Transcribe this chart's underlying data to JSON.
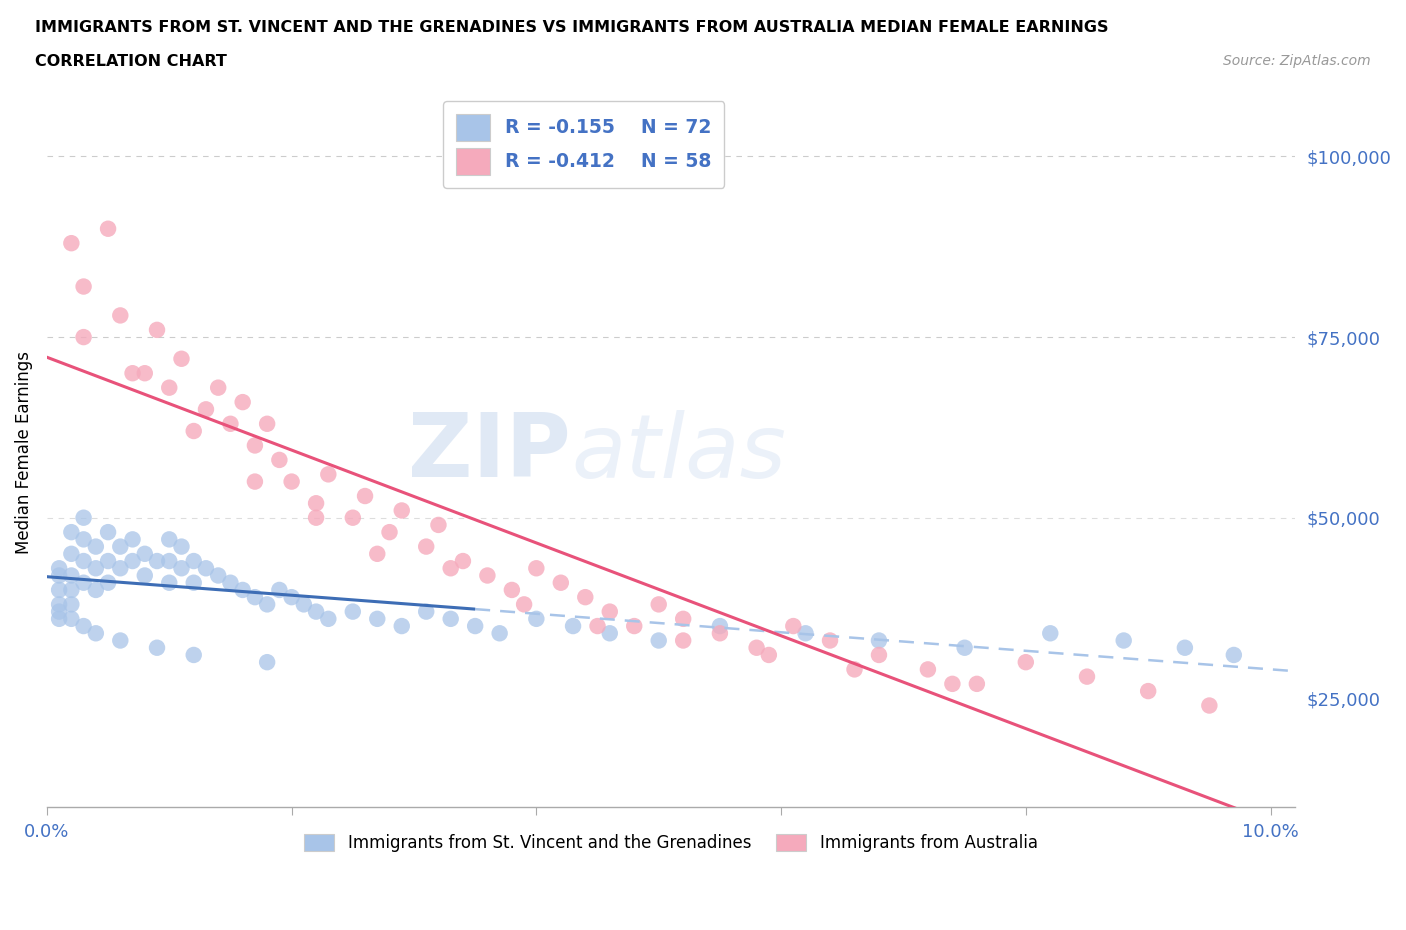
{
  "title_line1": "IMMIGRANTS FROM ST. VINCENT AND THE GRENADINES VS IMMIGRANTS FROM AUSTRALIA MEDIAN FEMALE EARNINGS",
  "title_line2": "CORRELATION CHART",
  "source": "Source: ZipAtlas.com",
  "ylabel": "Median Female Earnings",
  "xlim": [
    0.0,
    0.102
  ],
  "ylim": [
    10000,
    108000
  ],
  "yticks": [
    25000,
    50000,
    75000,
    100000
  ],
  "ytick_labels": [
    "$25,000",
    "$50,000",
    "$75,000",
    "$100,000"
  ],
  "xticks": [
    0.0,
    0.02,
    0.04,
    0.06,
    0.08,
    0.1
  ],
  "xtick_labels": [
    "0.0%",
    "",
    "",
    "",
    "",
    "10.0%"
  ],
  "legend_r1": "R = -0.155",
  "legend_n1": "N = 72",
  "legend_r2": "R = -0.412",
  "legend_n2": "N = 58",
  "color_blue": "#a8c4e8",
  "color_pink": "#f5aabc",
  "color_blue_line": "#3d6db5",
  "color_pink_line": "#e8527a",
  "color_blue_dash": "#a8c4e8",
  "watermark_zip": "ZIP",
  "watermark_atlas": "atlas",
  "label1": "Immigrants from St. Vincent and the Grenadines",
  "label2": "Immigrants from Australia",
  "blue_x": [
    0.001,
    0.001,
    0.001,
    0.001,
    0.001,
    0.002,
    0.002,
    0.002,
    0.002,
    0.002,
    0.003,
    0.003,
    0.003,
    0.003,
    0.004,
    0.004,
    0.004,
    0.005,
    0.005,
    0.005,
    0.006,
    0.006,
    0.007,
    0.007,
    0.008,
    0.008,
    0.009,
    0.01,
    0.01,
    0.01,
    0.011,
    0.011,
    0.012,
    0.012,
    0.013,
    0.014,
    0.015,
    0.016,
    0.017,
    0.018,
    0.019,
    0.02,
    0.021,
    0.022,
    0.023,
    0.025,
    0.027,
    0.029,
    0.031,
    0.033,
    0.035,
    0.037,
    0.04,
    0.043,
    0.046,
    0.05,
    0.055,
    0.062,
    0.068,
    0.075,
    0.082,
    0.088,
    0.093,
    0.097,
    0.001,
    0.002,
    0.003,
    0.004,
    0.006,
    0.009,
    0.012,
    0.018
  ],
  "blue_y": [
    43000,
    42000,
    40000,
    38000,
    36000,
    48000,
    45000,
    42000,
    40000,
    38000,
    50000,
    47000,
    44000,
    41000,
    46000,
    43000,
    40000,
    48000,
    44000,
    41000,
    46000,
    43000,
    47000,
    44000,
    45000,
    42000,
    44000,
    47000,
    44000,
    41000,
    46000,
    43000,
    44000,
    41000,
    43000,
    42000,
    41000,
    40000,
    39000,
    38000,
    40000,
    39000,
    38000,
    37000,
    36000,
    37000,
    36000,
    35000,
    37000,
    36000,
    35000,
    34000,
    36000,
    35000,
    34000,
    33000,
    35000,
    34000,
    33000,
    32000,
    34000,
    33000,
    32000,
    31000,
    37000,
    36000,
    35000,
    34000,
    33000,
    32000,
    31000,
    30000
  ],
  "pink_x": [
    0.002,
    0.003,
    0.005,
    0.006,
    0.008,
    0.009,
    0.01,
    0.011,
    0.013,
    0.014,
    0.015,
    0.016,
    0.017,
    0.018,
    0.019,
    0.02,
    0.022,
    0.023,
    0.025,
    0.026,
    0.028,
    0.029,
    0.031,
    0.032,
    0.034,
    0.036,
    0.038,
    0.04,
    0.042,
    0.044,
    0.046,
    0.048,
    0.05,
    0.052,
    0.055,
    0.058,
    0.061,
    0.064,
    0.068,
    0.072,
    0.076,
    0.08,
    0.085,
    0.09,
    0.095,
    0.003,
    0.007,
    0.012,
    0.017,
    0.022,
    0.027,
    0.033,
    0.039,
    0.045,
    0.052,
    0.059,
    0.066,
    0.074
  ],
  "pink_y": [
    88000,
    82000,
    90000,
    78000,
    70000,
    76000,
    68000,
    72000,
    65000,
    68000,
    63000,
    66000,
    60000,
    63000,
    58000,
    55000,
    52000,
    56000,
    50000,
    53000,
    48000,
    51000,
    46000,
    49000,
    44000,
    42000,
    40000,
    43000,
    41000,
    39000,
    37000,
    35000,
    38000,
    36000,
    34000,
    32000,
    35000,
    33000,
    31000,
    29000,
    27000,
    30000,
    28000,
    26000,
    24000,
    75000,
    70000,
    62000,
    55000,
    50000,
    45000,
    43000,
    38000,
    35000,
    33000,
    31000,
    29000,
    27000
  ]
}
